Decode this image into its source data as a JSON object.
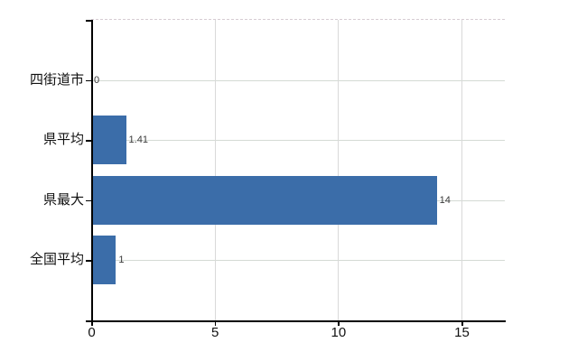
{
  "chart_data": {
    "type": "bar",
    "orientation": "horizontal",
    "title": "",
    "xlabel": "",
    "ylabel": "",
    "categories": [
      "四街道市",
      "県平均",
      "県最大",
      "全国平均"
    ],
    "values": [
      0,
      1.41,
      14,
      1
    ],
    "value_labels": [
      "0",
      "1.41",
      "14",
      "1"
    ],
    "x_ticks": [
      0,
      5,
      10,
      15
    ],
    "x_tick_labels": [
      "0",
      "5",
      "10",
      "15"
    ],
    "xlim": [
      0,
      16.8
    ],
    "grid": true,
    "legend": false,
    "colors": {
      "bar": "#3b6da9",
      "axis": "#000000",
      "vertical_gridline": "#d9d9d9",
      "horizontal_gridline": "#d4dad4",
      "top_border": "#d6ccd3",
      "background": "#ffffff",
      "category_label": "#111111",
      "value_label": "#3a3a3a",
      "tick_label": "#111111"
    }
  }
}
